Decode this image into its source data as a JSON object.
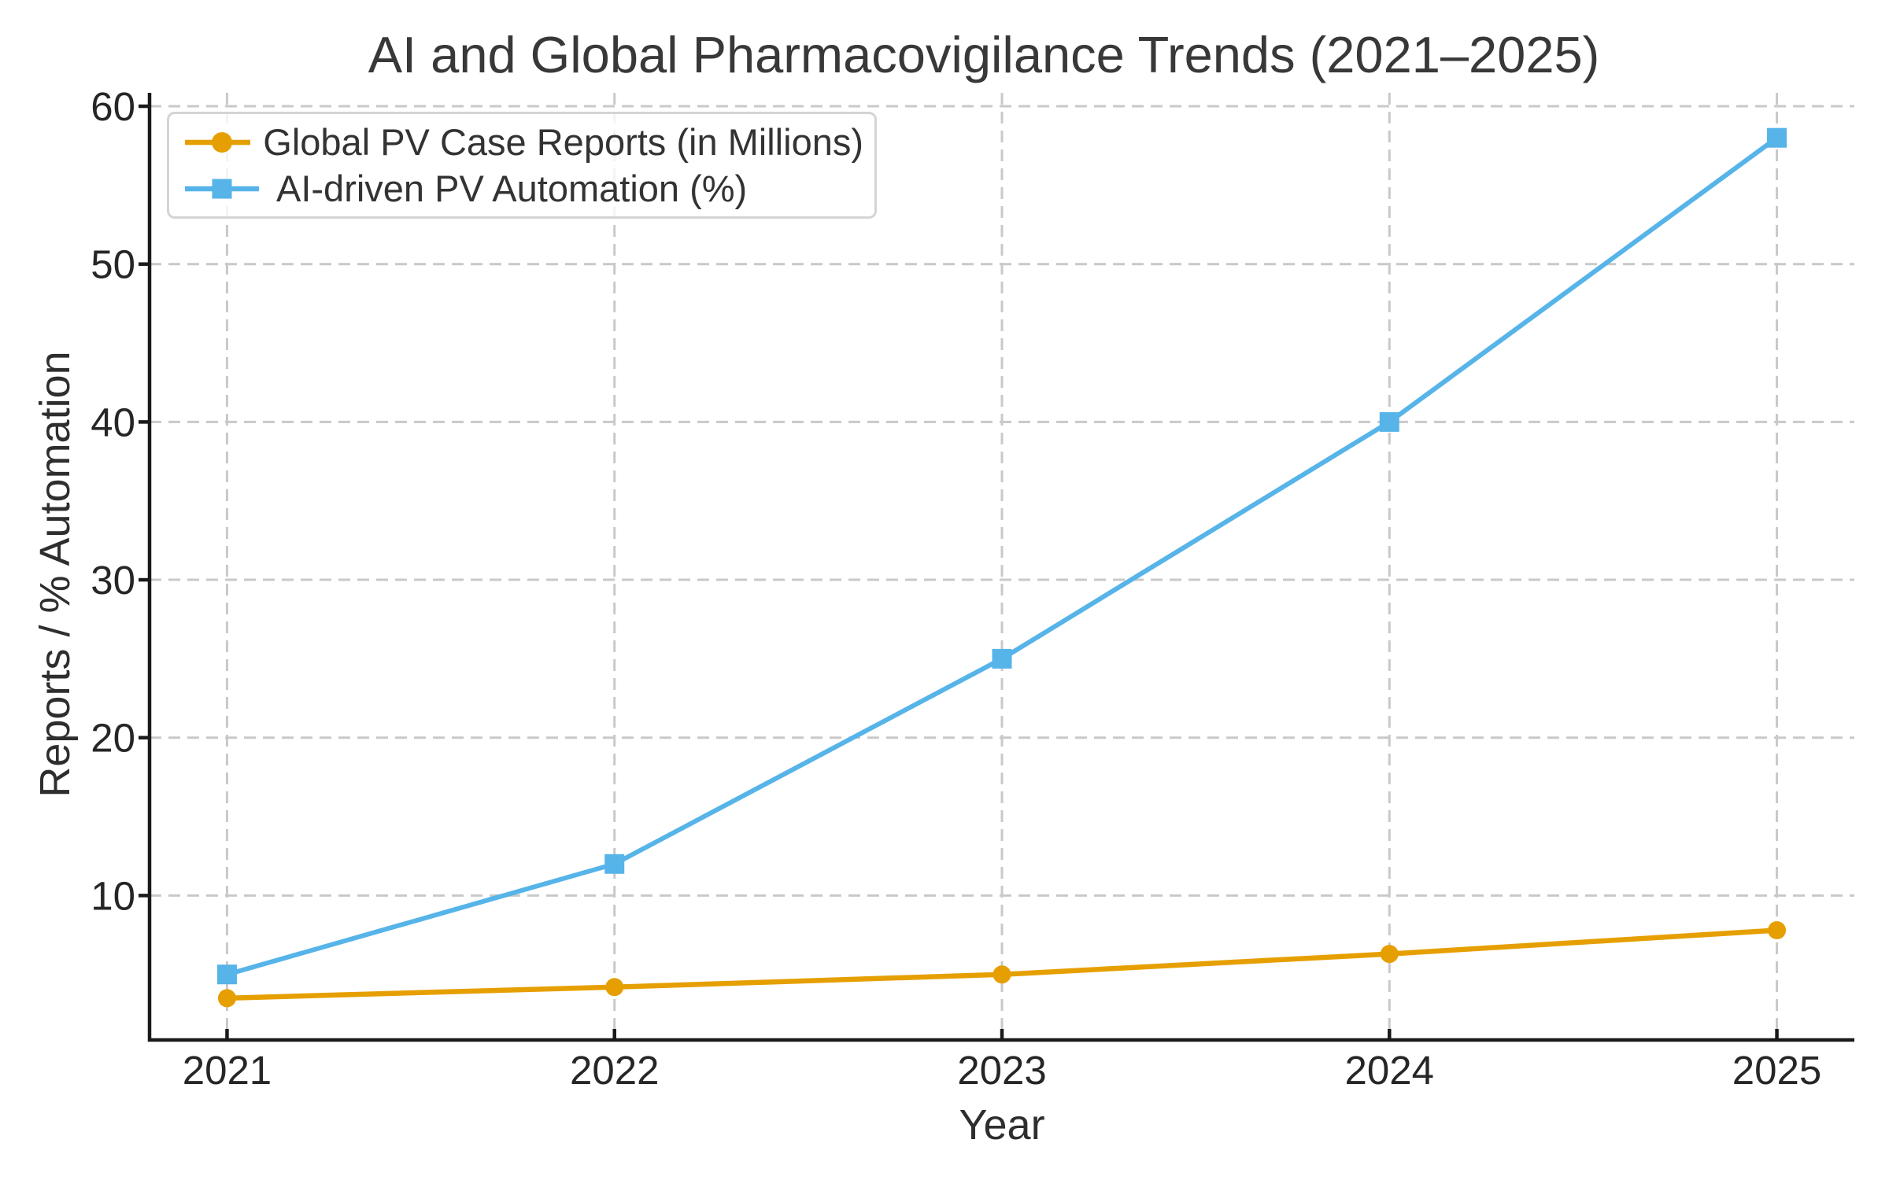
{
  "figure": {
    "background": "#ffffff"
  },
  "chart_data": {
    "type": "line",
    "title": "AI and Global Pharmacovigilance Trends (2021–2025)",
    "xlabel": "Year",
    "ylabel": "Reports / % Automation",
    "x": [
      2021,
      2022,
      2023,
      2024,
      2025
    ],
    "series": [
      {
        "name": "Global PV Case Reports (in Millions)",
        "marker": "circle",
        "color": "#E69F00",
        "line_width": 6.5,
        "values": [
          3.5,
          4.2,
          5.0,
          6.3,
          7.8
        ]
      },
      {
        "name": "AI-driven PV Automation (%)",
        "marker": "square",
        "color": "#56B4E9",
        "line_width": 6,
        "values": [
          5,
          12,
          25,
          40,
          58
        ]
      }
    ],
    "xticks": [
      2021,
      2022,
      2023,
      2024,
      2025
    ],
    "yticks": [
      10,
      20,
      30,
      40,
      50,
      60
    ],
    "xlim": [
      2020.8,
      2025.2
    ],
    "ylim": [
      0.85,
      60.85
    ],
    "grid": true,
    "grid_style": "dashed",
    "legend_position": "upper left",
    "colors": {
      "grid": "#c9c9c9",
      "axis": "#1a1a1a",
      "tick_labels": "#262626",
      "title": "#383838",
      "legend_border": "#d4d4d4",
      "legend_text": "#333333",
      "background": "#ffffff"
    }
  }
}
